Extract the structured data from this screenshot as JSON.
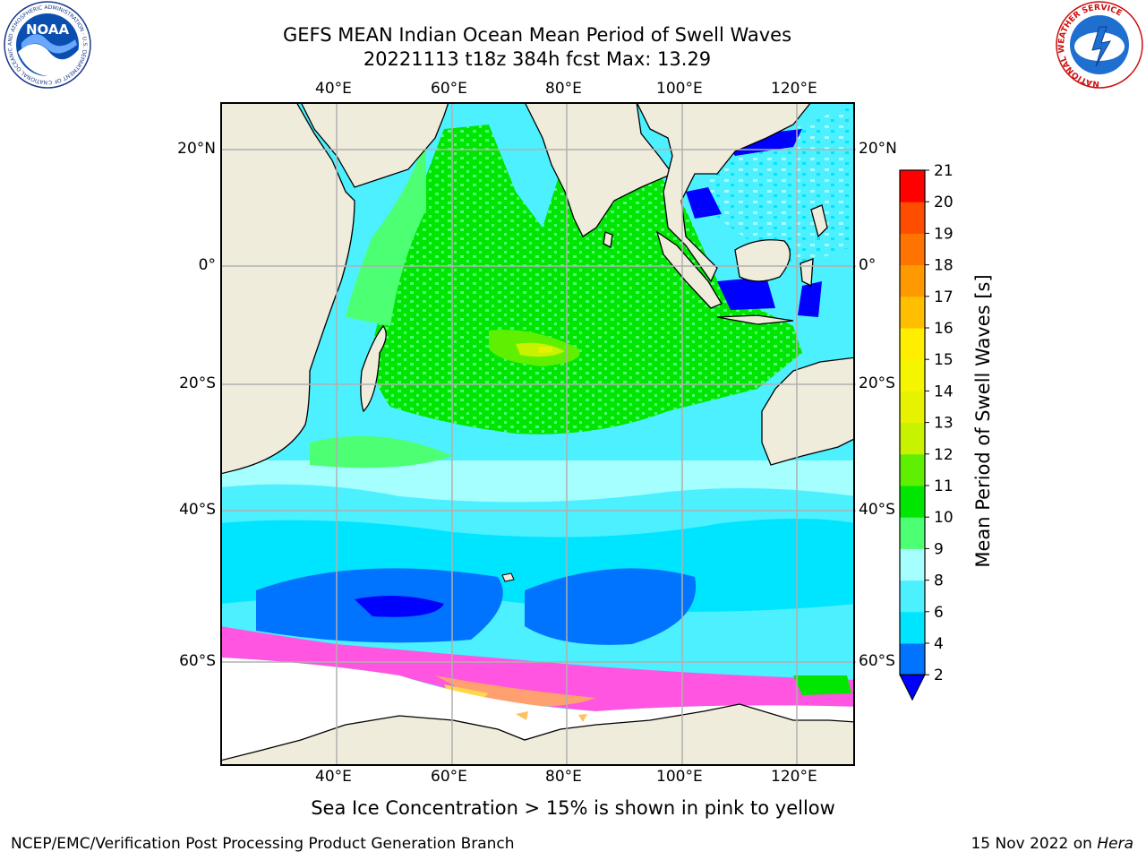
{
  "title_line1": "GEFS MEAN Indian Ocean Mean Period of Swell Waves",
  "title_line2": "20221113 t18z 384h fcst   Max: 13.29",
  "logos": {
    "noaa_text": "NOAA",
    "noaa_ring": "NATIONAL OCEANIC AND ATMOSPHERIC ADMINISTRATION · U.S. DEPARTMENT OF COMMERCE",
    "nws_ring": "NATIONAL WEATHER SERVICE"
  },
  "map": {
    "lon_labels": [
      "40°E",
      "60°E",
      "80°E",
      "100°E",
      "120°E"
    ],
    "lat_labels_left": [
      "20°N",
      "0°",
      "20°S",
      "40°S",
      "60°S"
    ],
    "lat_labels_right": [
      "20°N",
      "0°",
      "20°S",
      "40°S",
      "60°S"
    ],
    "colors": {
      "land": "#efecdc",
      "ice_free_south": "#ffffff",
      "grid": "#b0b0b0",
      "coast": "#000000"
    }
  },
  "colorbar": {
    "label": "Mean Period of Swell Waves [s]",
    "ticks": [
      "2",
      "4",
      "6",
      "8",
      "9",
      "10",
      "11",
      "12",
      "13",
      "14",
      "15",
      "16",
      "17",
      "18",
      "19",
      "20",
      "21"
    ],
    "bins": [
      {
        "from": 2,
        "to": 4,
        "color": "#0073ff"
      },
      {
        "from": 4,
        "to": 6,
        "color": "#00e5ff"
      },
      {
        "from": 6,
        "to": 8,
        "color": "#4cf0ff"
      },
      {
        "from": 8,
        "to": 9,
        "color": "#a5ffff"
      },
      {
        "from": 9,
        "to": 10,
        "color": "#4dff73"
      },
      {
        "from": 10,
        "to": 11,
        "color": "#00e600"
      },
      {
        "from": 11,
        "to": 12,
        "color": "#5ef000"
      },
      {
        "from": 12,
        "to": 13,
        "color": "#c7f200"
      },
      {
        "from": 13,
        "to": 14,
        "color": "#e6f200"
      },
      {
        "from": 14,
        "to": 15,
        "color": "#f5f500"
      },
      {
        "from": 15,
        "to": 16,
        "color": "#ffee00"
      },
      {
        "from": 16,
        "to": 17,
        "color": "#ffbf00"
      },
      {
        "from": 17,
        "to": 18,
        "color": "#ff9900"
      },
      {
        "from": 18,
        "to": 19,
        "color": "#ff7300"
      },
      {
        "from": 19,
        "to": 20,
        "color": "#ff4d00"
      },
      {
        "from": 20,
        "to": 21,
        "color": "#ff0000"
      }
    ],
    "under_color": "#0000ff"
  },
  "note": "Sea Ice Concentration > 15% is shown in pink to yellow",
  "footer_left": "NCEP/EMC/Verification Post Processing Product Generation Branch",
  "footer_right_prefix": "15 Nov 2022 on ",
  "footer_right_italic": "Hera"
}
